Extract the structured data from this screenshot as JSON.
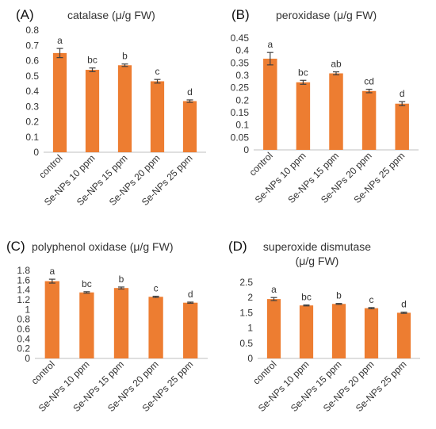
{
  "colors": {
    "bar": "#ED7D31",
    "axis": "#BFBFBF",
    "text": "#333333",
    "errorbar": "#404040"
  },
  "chart_data": [
    {
      "type": "bar",
      "panel": "(A)",
      "title": [
        "catalase (μ/g FW)"
      ],
      "categories": [
        "control",
        "Se-NPs 10 ppm",
        "Se-NPs 15 ppm",
        "Se-NPs 20 ppm",
        "Se-NPs 25 ppm"
      ],
      "values": [
        0.65,
        0.54,
        0.57,
        0.465,
        0.335
      ],
      "errors": [
        0.03,
        0.012,
        0.008,
        0.012,
        0.008
      ],
      "significance": [
        "a",
        "bc",
        "b",
        "c",
        "d"
      ],
      "ylim": [
        0,
        0.8
      ],
      "yticks": [
        "0",
        "0.1",
        "0.2",
        "0.3",
        "0.4",
        "0.5",
        "0.6",
        "0.7",
        "0.8"
      ]
    },
    {
      "type": "bar",
      "panel": "(B)",
      "title": [
        "peroxidase (μ/g FW)"
      ],
      "categories": [
        "control",
        "Se-NPs 10 ppm",
        "Se-NPs 15 ppm",
        "Se-NPs 20 ppm",
        "Se-NPs 25 ppm"
      ],
      "values": [
        0.367,
        0.272,
        0.308,
        0.237,
        0.186
      ],
      "errors": [
        0.025,
        0.008,
        0.006,
        0.007,
        0.008
      ],
      "significance": [
        "a",
        "bc",
        "ab",
        "cd",
        "d"
      ],
      "ylim": [
        0,
        0.45
      ],
      "yticks": [
        "0",
        "0.05",
        "0.1",
        "0.15",
        "0.2",
        "0.25",
        "0.3",
        "0.35",
        "0.4",
        "0.45"
      ]
    },
    {
      "type": "bar",
      "panel": "(C)",
      "title": [
        "polyphenol oxidase (μ/g FW)"
      ],
      "categories": [
        "control",
        "Se-NPs 10 ppm",
        "Se-NPs 15 ppm",
        "Se-NPs 20 ppm",
        "Se-NPs 25 ppm"
      ],
      "values": [
        1.58,
        1.35,
        1.44,
        1.26,
        1.14
      ],
      "errors": [
        0.04,
        0.015,
        0.02,
        0.012,
        0.012
      ],
      "significance": [
        "a",
        "bc",
        "b",
        "c",
        "d"
      ],
      "ylim": [
        0,
        1.8
      ],
      "yticks": [
        "0",
        "0.2",
        "0.4",
        "0.6",
        "0.8",
        "1",
        "1.2",
        "1.4",
        "1.6",
        "1.8"
      ]
    },
    {
      "type": "bar",
      "panel": "(D)",
      "title": [
        "superoxide dismutase",
        "(μ/g FW)"
      ],
      "categories": [
        "control",
        "Se-NPs 10 ppm",
        "Se-NPs 15 ppm",
        "Se-NPs 20 ppm",
        "Se-NPs 25 ppm"
      ],
      "values": [
        1.95,
        1.74,
        1.79,
        1.65,
        1.5
      ],
      "errors": [
        0.05,
        0.015,
        0.015,
        0.02,
        0.02
      ],
      "significance": [
        "a",
        "bc",
        "b",
        "c",
        "d"
      ],
      "ylim": [
        0,
        2.5
      ],
      "yticks": [
        "0",
        "0.5",
        "1",
        "1.5",
        "2",
        "2.5"
      ]
    }
  ]
}
